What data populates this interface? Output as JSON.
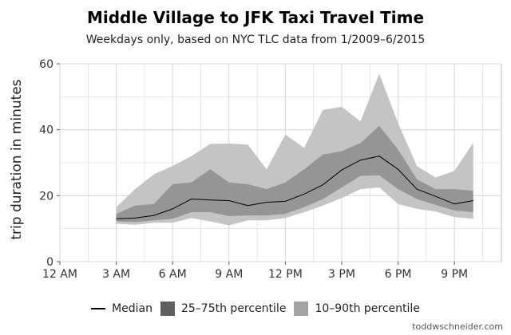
{
  "title": "Middle Village to JFK Taxi Travel Time",
  "subtitle": "Weekdays only, based on NYC TLC data from 1/2009–6/2015",
  "credit": "toddwschneider.com",
  "colors": {
    "band90": "#c4c4c4",
    "band75": "#707070",
    "median": "#000000",
    "panel": "#ffffff",
    "grid": "#d9d9d9"
  },
  "chart_data": {
    "type": "area",
    "xlabel": "",
    "ylabel": "trip duration in minutes",
    "xlim": [
      0,
      23.5
    ],
    "ylim": [
      0,
      60
    ],
    "x_ticks": [
      {
        "value": 0,
        "label": "12 AM"
      },
      {
        "value": 3,
        "label": "3 AM"
      },
      {
        "value": 6,
        "label": "6 AM"
      },
      {
        "value": 9,
        "label": "9 AM"
      },
      {
        "value": 12,
        "label": "12 PM"
      },
      {
        "value": 15,
        "label": "3 PM"
      },
      {
        "value": 18,
        "label": "6 PM"
      },
      {
        "value": 21,
        "label": "9 PM"
      }
    ],
    "y_ticks": [
      0,
      20,
      40,
      60
    ],
    "grid": true,
    "legend_position": "bottom",
    "x": [
      3,
      4,
      5,
      6,
      7,
      8,
      9,
      10,
      11,
      12,
      13,
      14,
      15,
      16,
      17,
      18,
      19,
      20,
      21,
      22
    ],
    "series": [
      {
        "name": "Median",
        "kind": "line",
        "values": [
          13,
          13.2,
          14,
          16,
          19,
          18.7,
          18.5,
          17,
          18,
          18.3,
          20.5,
          23.3,
          27.8,
          30.8,
          32,
          28,
          22,
          19.8,
          17.5,
          18.5
        ]
      },
      {
        "name": "25–75th percentile",
        "kind": "band",
        "lower": [
          12.2,
          12,
          12.5,
          13,
          15,
          15,
          13.8,
          14,
          14,
          14.5,
          16.5,
          19,
          22.5,
          26,
          26.2,
          22,
          19,
          17.2,
          15.5,
          15
        ],
        "upper": [
          14.5,
          17,
          17.5,
          23.5,
          24,
          28,
          24,
          23.5,
          22,
          24,
          28,
          32.5,
          33.5,
          36,
          41.2,
          34,
          25,
          22,
          22,
          21.5
        ]
      },
      {
        "name": "10–90th percentile",
        "kind": "band",
        "lower": [
          11.5,
          11.2,
          11.8,
          11.8,
          13.2,
          12.2,
          11,
          12.5,
          12.5,
          13.2,
          15,
          17,
          19.3,
          22,
          22.5,
          17.5,
          16,
          15.2,
          13.5,
          13
        ],
        "upper": [
          16.5,
          22,
          26.5,
          29,
          32,
          35.7,
          35.8,
          35.5,
          28,
          38.5,
          34.5,
          46,
          47,
          42.5,
          57,
          42,
          29,
          25.5,
          27.5,
          36
        ]
      }
    ]
  }
}
